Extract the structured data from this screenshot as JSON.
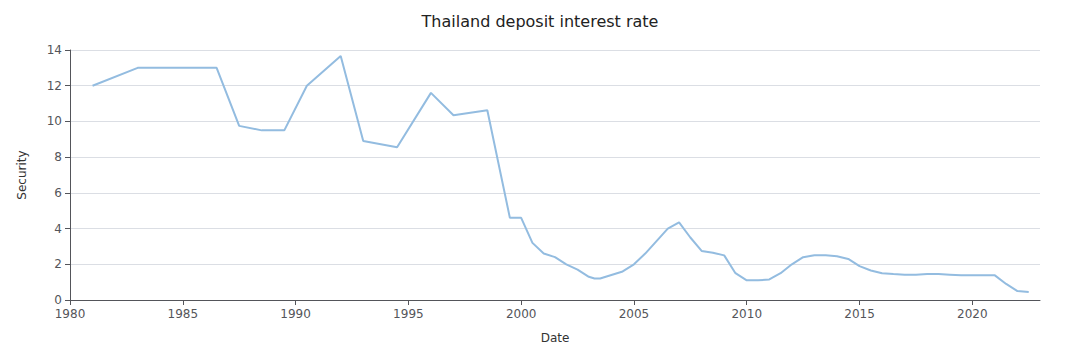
{
  "chart_data": {
    "type": "line",
    "title": "Thailand deposit interest rate",
    "xlabel": "Date",
    "ylabel": "Security",
    "x": [
      1981.0,
      1983.0,
      1984.5,
      1986.5,
      1987.5,
      1988.5,
      1989.5,
      1990.5,
      1992.0,
      1993.0,
      1994.5,
      1996.0,
      1997.0,
      1998.5,
      1999.5,
      2000.0,
      2000.5,
      2001.0,
      2001.5,
      2002.0,
      2002.5,
      2003.0,
      2003.25,
      2003.5,
      2004.0,
      2004.5,
      2005.0,
      2005.5,
      2006.0,
      2006.5,
      2007.0,
      2007.5,
      2008.0,
      2008.5,
      2009.0,
      2009.5,
      2010.0,
      2010.5,
      2011.0,
      2011.5,
      2012.0,
      2012.5,
      2013.0,
      2013.5,
      2014.0,
      2014.5,
      2015.0,
      2015.5,
      2016.0,
      2016.5,
      2017.0,
      2017.5,
      2018.0,
      2018.5,
      2019.0,
      2019.5,
      2020.0,
      2020.5,
      2021.0,
      2021.5,
      2022.0,
      2022.5
    ],
    "values": [
      12.0,
      13.0,
      13.0,
      13.0,
      9.75,
      9.5,
      9.5,
      12.0,
      13.67,
      8.9,
      8.55,
      11.6,
      10.35,
      10.63,
      4.6,
      4.6,
      3.2,
      2.6,
      2.4,
      2.0,
      1.7,
      1.3,
      1.2,
      1.2,
      1.4,
      1.6,
      2.0,
      2.6,
      3.3,
      4.0,
      4.35,
      3.5,
      2.75,
      2.65,
      2.5,
      1.5,
      1.1,
      1.1,
      1.15,
      1.5,
      2.0,
      2.4,
      2.5,
      2.5,
      2.45,
      2.3,
      1.9,
      1.65,
      1.5,
      1.45,
      1.42,
      1.42,
      1.45,
      1.45,
      1.42,
      1.38,
      1.38,
      1.38,
      1.38,
      0.9,
      0.5,
      0.45
    ],
    "color": "#93bce0",
    "xlim": [
      1980,
      2023
    ],
    "xticks": [
      1980,
      1985,
      1990,
      1995,
      2000,
      2005,
      2010,
      2015,
      2020
    ],
    "ylim": [
      0,
      14
    ],
    "yticks": [
      0,
      2,
      4,
      6,
      8,
      10,
      12,
      14
    ],
    "grid": "y"
  }
}
